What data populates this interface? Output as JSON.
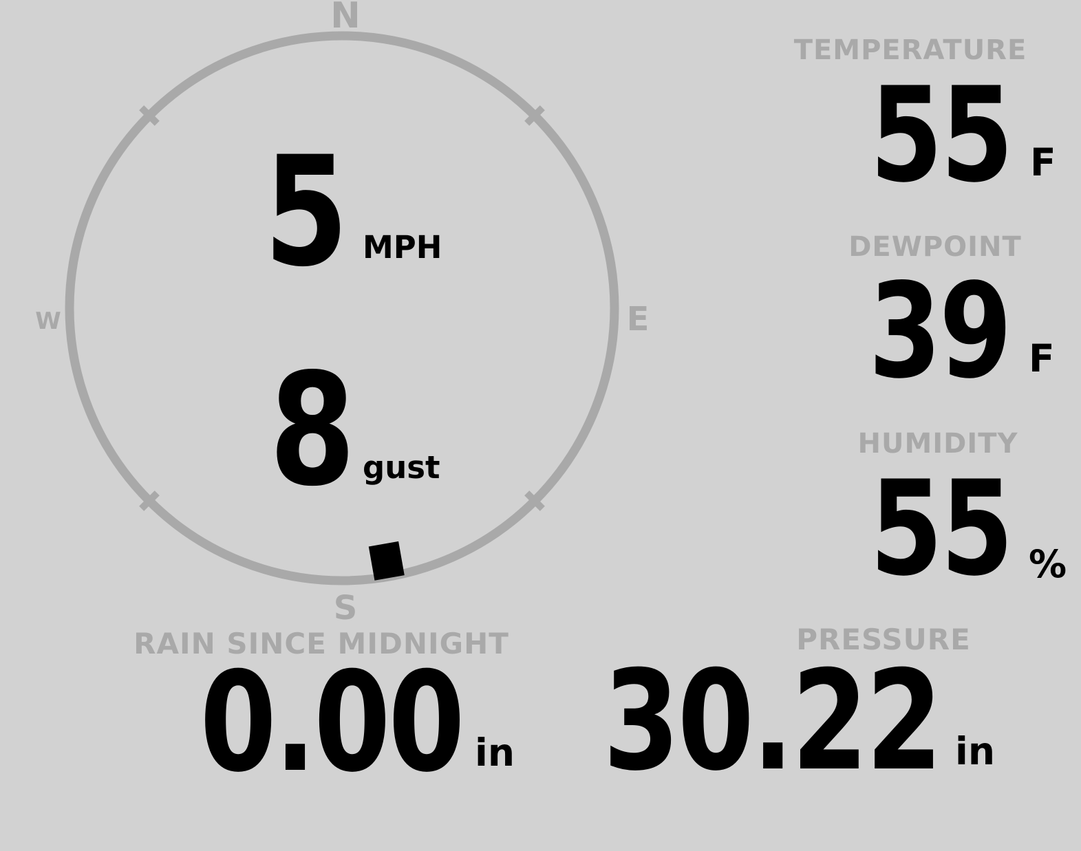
{
  "colors": {
    "background": "#d2d2d2",
    "dial": "#a9a9a9",
    "text": "#000000"
  },
  "compass": {
    "cardinals": {
      "north": "N",
      "east": "E",
      "south": "S",
      "west": "W"
    },
    "speed": {
      "value": "5",
      "unit": "MPH"
    },
    "gust": {
      "value": "8",
      "unit": "gust"
    },
    "direction": {
      "bearing_deg": 170
    }
  },
  "metrics": {
    "temperature": {
      "label": "TEMPERATURE",
      "value": "55",
      "unit": "F"
    },
    "dewpoint": {
      "label": "DEWPOINT",
      "value": "39",
      "unit": "F"
    },
    "humidity": {
      "label": "HUMIDITY",
      "value": "55",
      "unit": "%"
    },
    "rain_since_midnight": {
      "label": "RAIN SINCE MIDNIGHT",
      "value": "0.00",
      "unit": "in"
    },
    "pressure": {
      "label": "PRESSURE",
      "value": "30.22",
      "unit": "in"
    }
  }
}
